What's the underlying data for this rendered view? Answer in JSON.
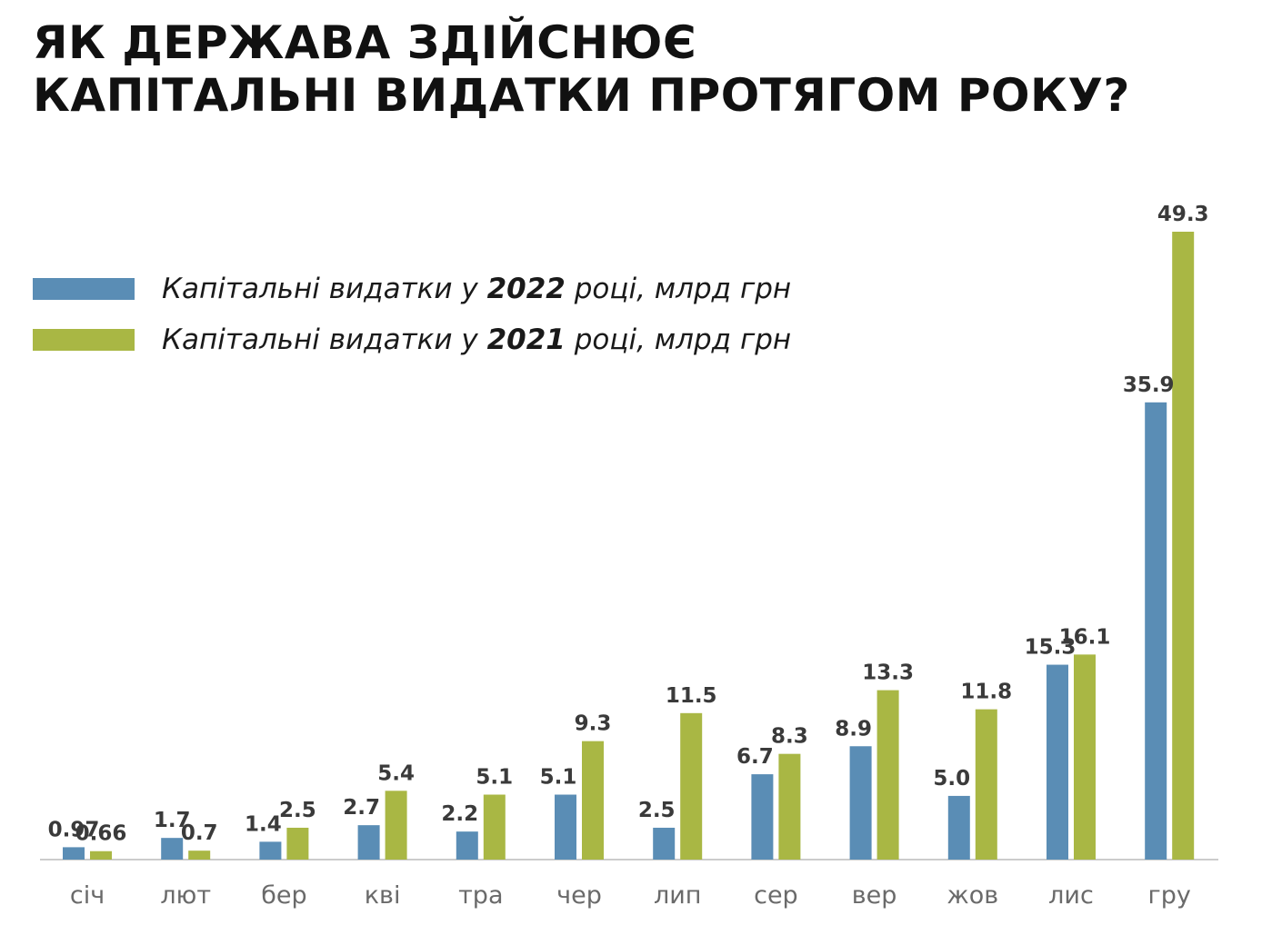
{
  "header": {
    "title_line1": "ЯК ДЕРЖАВА ЗДІЙСНЮЄ",
    "title_line2": "КАПІТАЛЬНІ ВИДАТКИ ПРОТЯГОМ РОКУ?"
  },
  "legend": {
    "items": [
      {
        "prefix": "Капітальні видатки у ",
        "year": "2022",
        "suffix": " році, млрд грн",
        "color": "#5a8db5"
      },
      {
        "prefix": "Капітальні видатки у ",
        "year": "2021",
        "suffix": " році, млрд грн",
        "color": "#a9b744"
      }
    ]
  },
  "colors": {
    "series_2022": "#5a8db5",
    "series_2021": "#a9b744",
    "axis": "#cccccc",
    "value_label": "#3a3a3a",
    "category_label": "#6a6a6a"
  },
  "chart_data": {
    "type": "bar",
    "title": "ЯК ДЕРЖАВА ЗДІЙСНЮЄ КАПІТАЛЬНІ ВИДАТКИ ПРОТЯГОМ РОКУ?",
    "categories": [
      "січ",
      "лют",
      "бер",
      "кві",
      "тра",
      "чер",
      "лип",
      "сер",
      "вер",
      "жов",
      "лис",
      "гру"
    ],
    "series": [
      {
        "name": "Капітальні видатки у 2022 році, млрд грн",
        "values": [
          0.97,
          1.7,
          1.4,
          2.7,
          2.2,
          5.1,
          2.5,
          6.7,
          8.9,
          5.0,
          15.3,
          35.9
        ],
        "labels": [
          "0.97",
          "1.7",
          "1.4",
          "2.7",
          "2.2",
          "5.1",
          "2.5",
          "6.7",
          "8.9",
          "5.0",
          "15.3",
          "35.9"
        ]
      },
      {
        "name": "Капітальні видатки у 2021 році, млрд грн",
        "values": [
          0.66,
          0.7,
          2.5,
          5.4,
          5.1,
          9.3,
          11.5,
          8.3,
          13.3,
          11.8,
          16.1,
          49.3
        ],
        "labels": [
          "0.66",
          "0.7",
          "2.5",
          "5.4",
          "5.1",
          "9.3",
          "11.5",
          "8.3",
          "13.3",
          "11.8",
          "16.1",
          "49.3"
        ]
      }
    ],
    "ylim": [
      0,
      49.3
    ],
    "grid": false,
    "legend_position": "top-left",
    "xlabel": "",
    "ylabel": ""
  }
}
